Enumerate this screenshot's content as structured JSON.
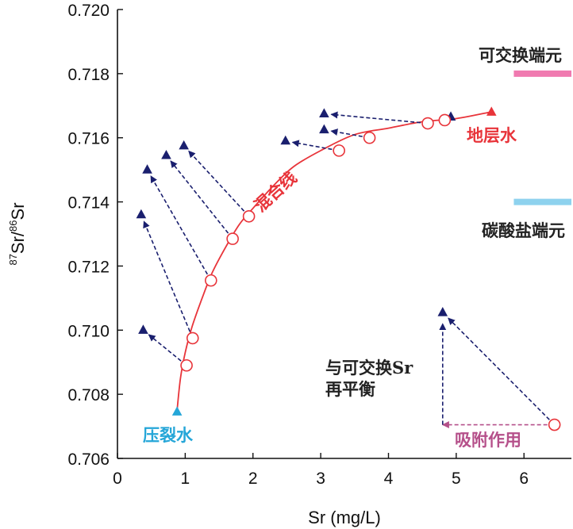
{
  "chart_data": {
    "type": "scatter",
    "xlabel": "Sr (mg/L)",
    "ylabel_sup1": "87",
    "ylabel_mid": "Sr/",
    "ylabel_sup2": "86",
    "ylabel_end": "Sr",
    "xlim": [
      0,
      6.7
    ],
    "ylim": [
      0.706,
      0.72
    ],
    "x_ticks": [
      0,
      1,
      2,
      3,
      4,
      5,
      6
    ],
    "x_tick_labels": [
      "0",
      "1",
      "2",
      "3",
      "4",
      "5",
      "6"
    ],
    "y_ticks": [
      0.706,
      0.708,
      0.71,
      0.712,
      0.714,
      0.716,
      0.718,
      0.72
    ],
    "y_tick_labels": [
      "0.706",
      "0.708",
      "0.710",
      "0.712",
      "0.714",
      "0.716",
      "0.718",
      "0.720"
    ],
    "colors": {
      "mixing_line": "#e8343a",
      "mixing_point": "#e8343a",
      "formation_water": "#e8343a",
      "fracturing_fluid": "#25a6d8",
      "sample": "#1a1f6e",
      "arrow": "#1a1f6e",
      "adsorption": "#b5508a",
      "exchangeable_endmember": "#f07ab0",
      "carbonate_endmember": "#8ed2ee",
      "text_dark": "#222222"
    },
    "mixing_line": {
      "name": "混合线",
      "x": [
        0.88,
        0.93,
        1.0,
        1.1,
        1.25,
        1.4,
        1.6,
        1.8,
        2.0,
        2.3,
        2.6,
        3.0,
        3.5,
        4.0,
        4.5,
        5.0,
        5.5
      ],
      "y": [
        0.7075,
        0.7085,
        0.7093,
        0.7101,
        0.711,
        0.7118,
        0.7126,
        0.7133,
        0.7138,
        0.7145,
        0.7151,
        0.7156,
        0.7161,
        0.7163,
        0.7165,
        0.7166,
        0.7168
      ]
    },
    "mixing_points": [
      {
        "x": 1.02,
        "y": 0.7089
      },
      {
        "x": 1.11,
        "y": 0.70975
      },
      {
        "x": 1.38,
        "y": 0.71155
      },
      {
        "x": 1.7,
        "y": 0.71285
      },
      {
        "x": 1.94,
        "y": 0.71355
      },
      {
        "x": 3.27,
        "y": 0.7156
      },
      {
        "x": 3.72,
        "y": 0.716
      },
      {
        "x": 4.58,
        "y": 0.71645
      },
      {
        "x": 4.83,
        "y": 0.71655
      },
      {
        "x": 6.45,
        "y": 0.70705
      }
    ],
    "samples": [
      {
        "x": 0.38,
        "y": 0.71
      },
      {
        "x": 0.35,
        "y": 0.7136
      },
      {
        "x": 0.44,
        "y": 0.715
      },
      {
        "x": 0.72,
        "y": 0.71545
      },
      {
        "x": 0.98,
        "y": 0.71575
      },
      {
        "x": 2.48,
        "y": 0.7159
      },
      {
        "x": 3.05,
        "y": 0.71625
      },
      {
        "x": 3.05,
        "y": 0.71675
      },
      {
        "x": 4.92,
        "y": 0.71665
      },
      {
        "x": 4.8,
        "y": 0.71055
      }
    ],
    "shift_arrows": [
      {
        "from": [
          1.02,
          0.7089
        ],
        "to": [
          0.38,
          0.71
        ]
      },
      {
        "from": [
          1.11,
          0.70975
        ],
        "to": [
          0.35,
          0.7136
        ]
      },
      {
        "from": [
          1.38,
          0.71155
        ],
        "to": [
          0.44,
          0.715
        ]
      },
      {
        "from": [
          1.7,
          0.71285
        ],
        "to": [
          0.72,
          0.71545
        ]
      },
      {
        "from": [
          1.94,
          0.71355
        ],
        "to": [
          0.98,
          0.71575
        ]
      },
      {
        "from": [
          3.27,
          0.7156
        ],
        "to": [
          2.48,
          0.7159
        ]
      },
      {
        "from": [
          3.72,
          0.716
        ],
        "to": [
          3.05,
          0.71625
        ]
      },
      {
        "from": [
          4.58,
          0.71645
        ],
        "to": [
          3.05,
          0.71675
        ]
      }
    ],
    "schematic": {
      "diagonal": {
        "from": [
          6.45,
          0.70705
        ],
        "to": [
          4.8,
          0.71055
        ]
      },
      "horizontal": {
        "from": [
          6.45,
          0.70705
        ],
        "to": [
          4.8,
          0.70705
        ]
      },
      "vertical": {
        "from": [
          4.8,
          0.70705
        ],
        "to": [
          4.8,
          0.71045
        ]
      }
    },
    "endmembers": [
      {
        "name": "可交换端元",
        "y": 0.718,
        "x0": 5.85,
        "x1": 6.7
      },
      {
        "name": "碳酸盐端元",
        "y": 0.714,
        "x0": 5.85,
        "x1": 6.7
      }
    ],
    "formation_water": {
      "name": "地层水",
      "x": 5.52,
      "y": 0.7168
    },
    "fracturing_fluid": {
      "name": "压裂水",
      "x": 0.88,
      "y": 0.70745
    },
    "annotations": {
      "re_equilibrium_1": "与可交换Sr",
      "re_equilibrium_2": "再平衡",
      "adsorption": "吸附作用"
    }
  }
}
